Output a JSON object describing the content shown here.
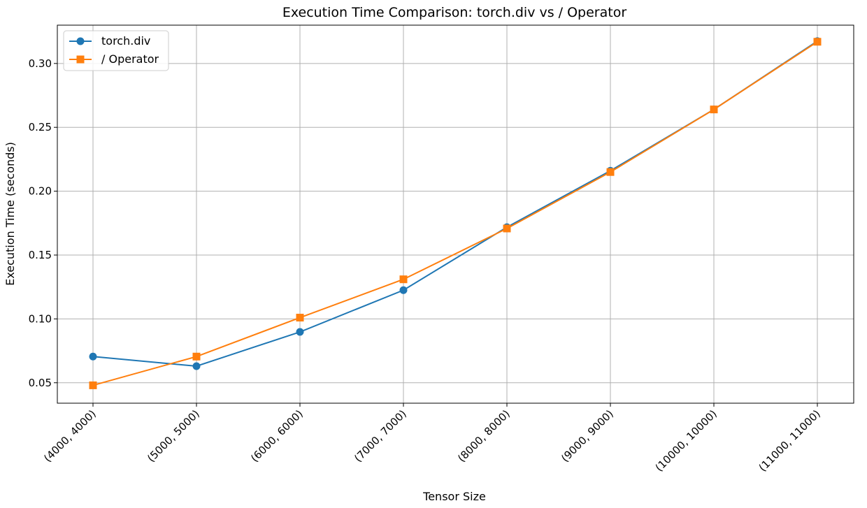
{
  "chart_data": {
    "type": "line",
    "title": "Execution Time Comparison: torch.div vs / Operator",
    "xlabel": "Tensor Size",
    "ylabel": "Execution Time (seconds)",
    "categories": [
      "(4000, 4000)",
      "(5000, 5000)",
      "(6000, 6000)",
      "(7000, 7000)",
      "(8000, 8000)",
      "(9000, 9000)",
      "(10000, 10000)",
      "(11000, 11000)"
    ],
    "ylim": [
      0.034,
      0.33
    ],
    "yticks": [
      0.05,
      0.1,
      0.15,
      0.2,
      0.25,
      0.3
    ],
    "ytick_labels": [
      "0.05",
      "0.10",
      "0.15",
      "0.20",
      "0.25",
      "0.30"
    ],
    "grid": true,
    "legend_position": "top-left",
    "series": [
      {
        "name": "torch.div",
        "color": "#1f77b4",
        "marker": "circle",
        "values": [
          0.0705,
          0.063,
          0.0898,
          0.1225,
          0.1718,
          0.216,
          0.264,
          0.3175
        ]
      },
      {
        "name": "/ Operator",
        "color": "#ff7f0e",
        "marker": "square",
        "values": [
          0.048,
          0.0705,
          0.101,
          0.131,
          0.1708,
          0.215,
          0.264,
          0.317
        ]
      }
    ]
  }
}
